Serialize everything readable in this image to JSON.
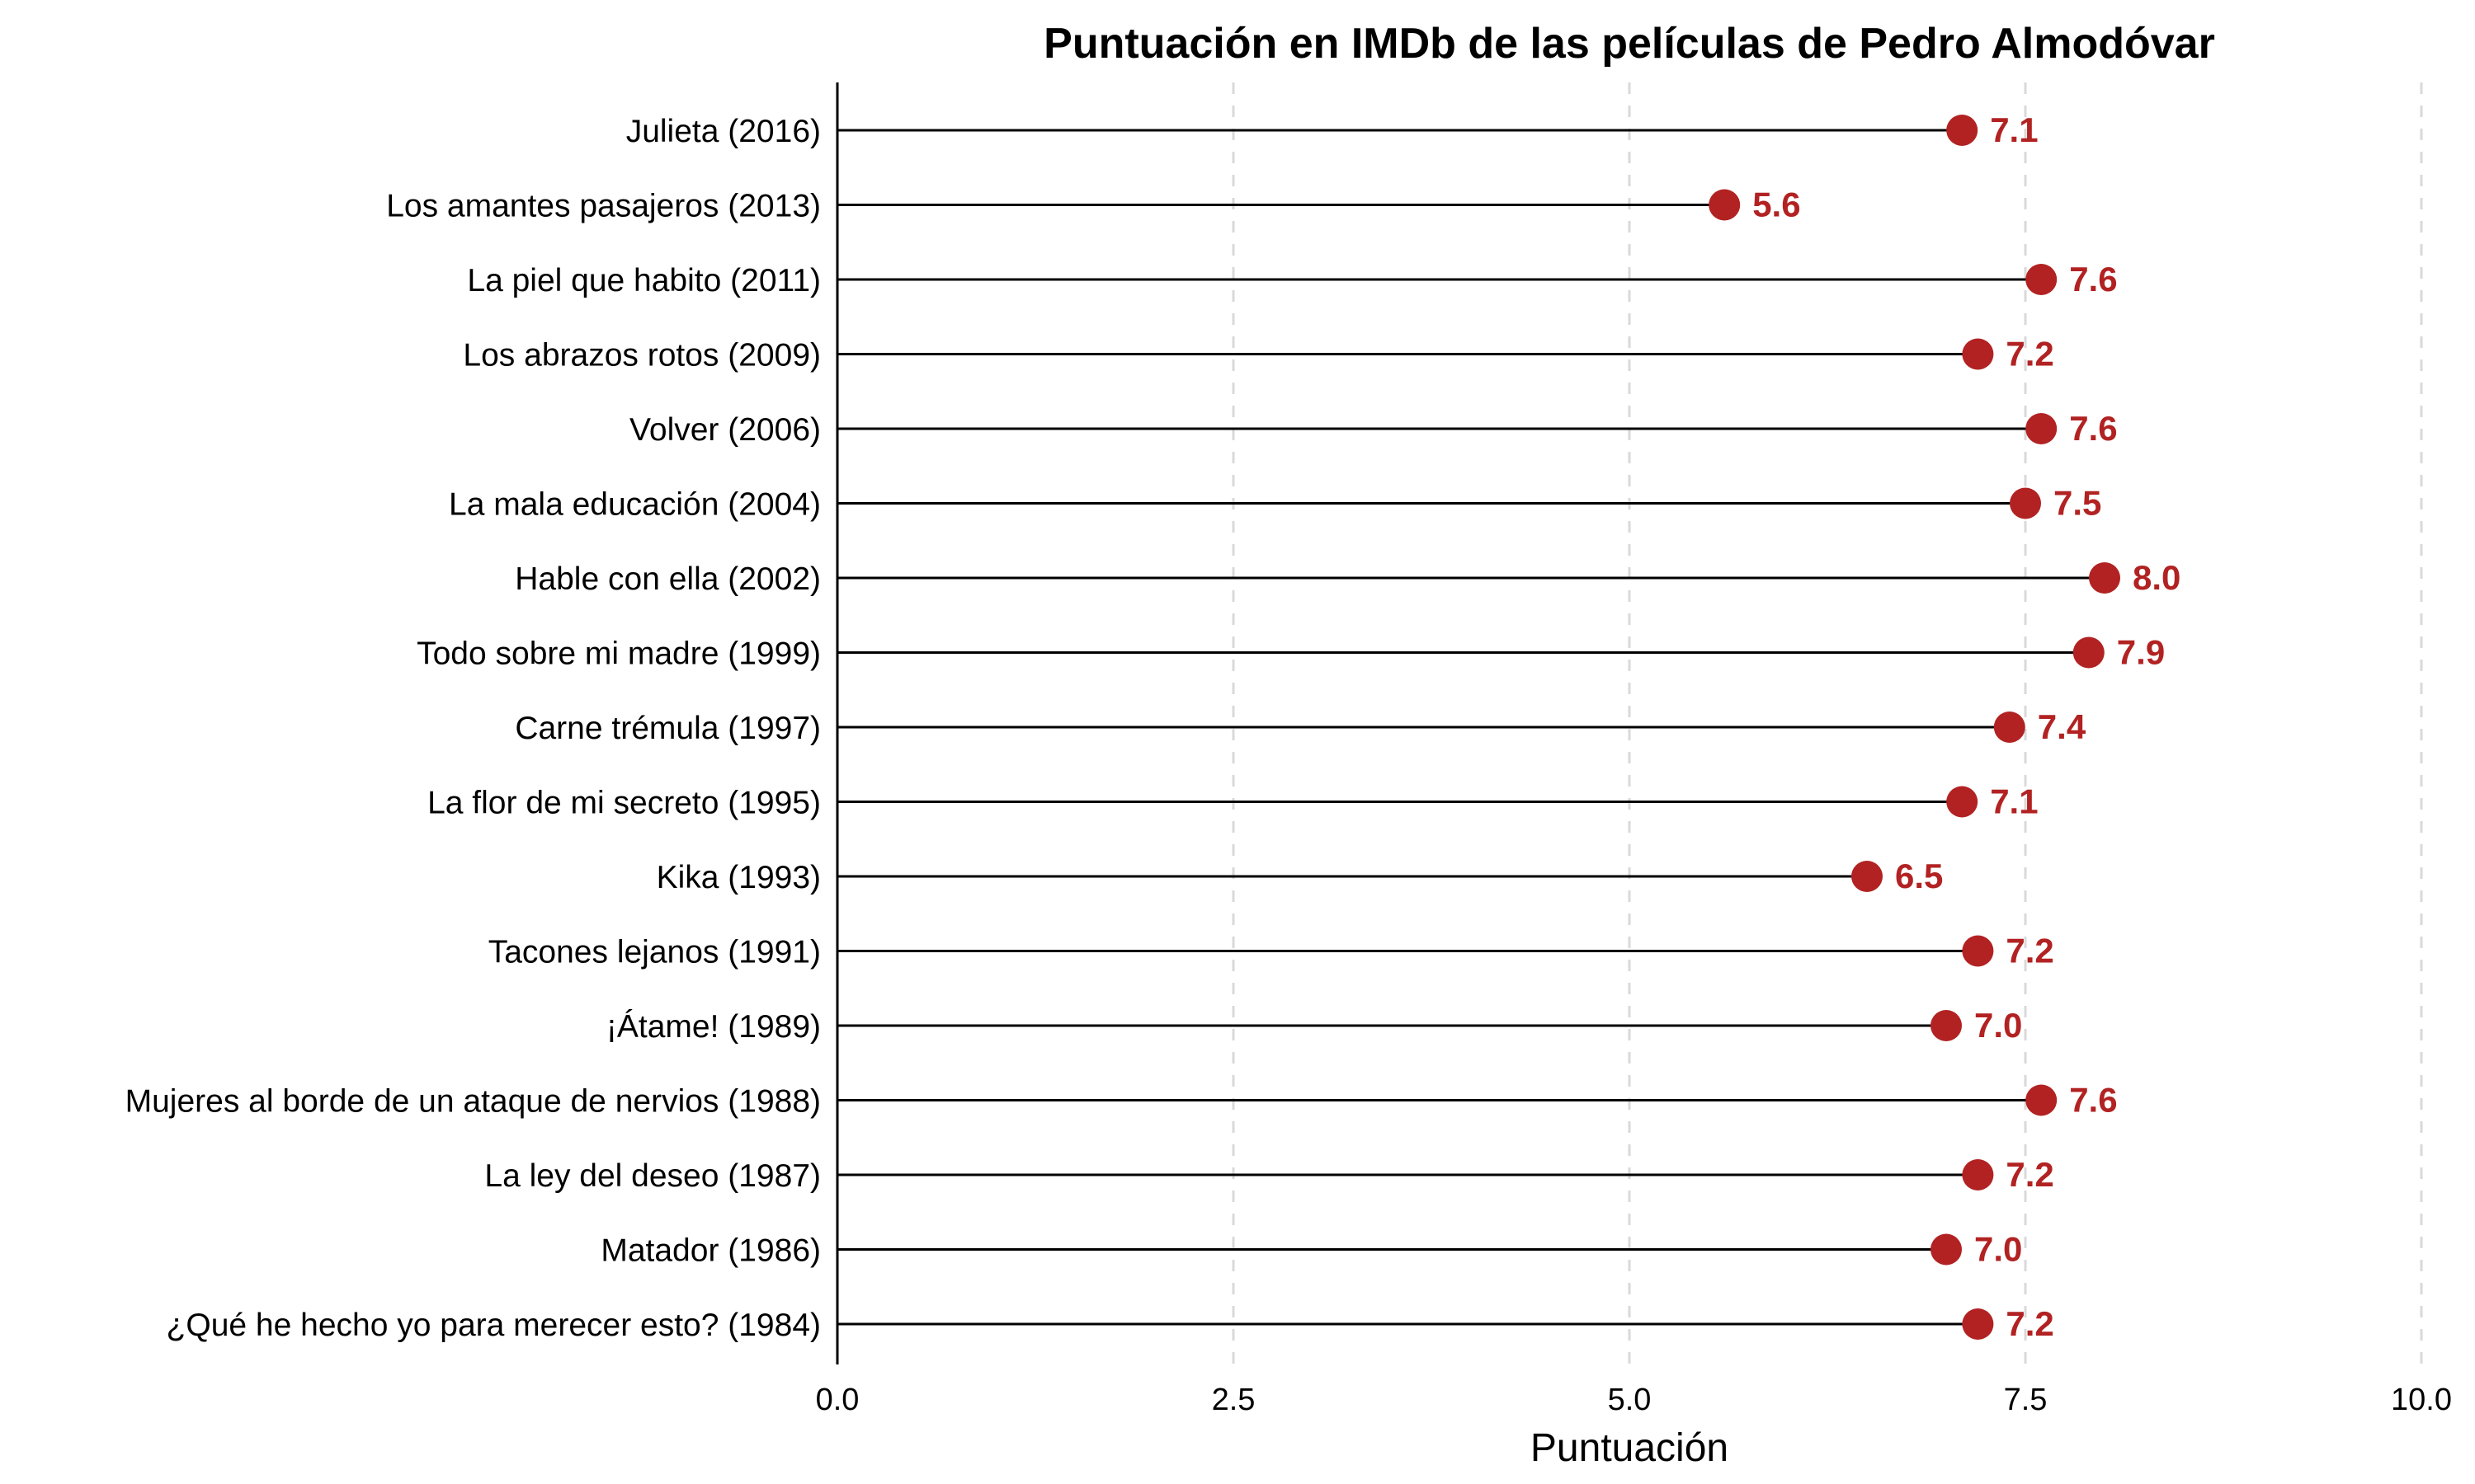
{
  "chart_data": {
    "type": "lollipop",
    "orientation": "horizontal",
    "title": "Puntuación en IMDb de las películas de Pedro Almodóvar",
    "xlabel": "Puntuación",
    "ylabel": "",
    "xlim": [
      0,
      10
    ],
    "x_ticks": [
      "0.0",
      "2.5",
      "5.0",
      "7.5",
      "10.0"
    ],
    "grid": "vertical dashed",
    "point_color": "#b22222",
    "stem_color": "#000000",
    "categories": [
      "Julieta (2016)",
      "Los amantes pasajeros (2013)",
      "La piel que habito (2011)",
      "Los abrazos rotos (2009)",
      "Volver (2006)",
      "La mala educación (2004)",
      "Hable con ella (2002)",
      "Todo sobre mi madre (1999)",
      "Carne trémula (1997)",
      "La flor de mi secreto (1995)",
      "Kika (1993)",
      "Tacones lejanos (1991)",
      "¡Átame! (1989)",
      "Mujeres al borde de un ataque de nervios (1988)",
      "La ley del deseo (1987)",
      "Matador (1986)",
      "¿Qué he hecho yo para merecer esto? (1984)"
    ],
    "values": [
      7.1,
      5.6,
      7.6,
      7.2,
      7.6,
      7.5,
      8.0,
      7.9,
      7.4,
      7.1,
      6.5,
      7.2,
      7.0,
      7.6,
      7.2,
      7.0,
      7.2
    ],
    "value_labels": [
      "7.1",
      "5.6",
      "7.6",
      "7.2",
      "7.6",
      "7.5",
      "8.0",
      "7.9",
      "7.4",
      "7.1",
      "6.5",
      "7.2",
      "7.0",
      "7.6",
      "7.2",
      "7.0",
      "7.2"
    ]
  }
}
